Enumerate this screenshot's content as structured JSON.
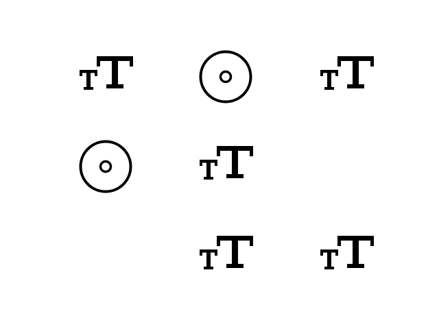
{
  "colors": {
    "background": "#ffffff",
    "icon": "#000000"
  },
  "grid": {
    "rows": 3,
    "cols": 3,
    "cells": [
      {
        "icon": "text-size-icon"
      },
      {
        "icon": "radio-button-icon"
      },
      {
        "icon": "text-size-icon"
      },
      {
        "icon": "radio-button-icon"
      },
      {
        "icon": "text-size-icon"
      },
      {
        "icon": ""
      },
      {
        "icon": ""
      },
      {
        "icon": "text-size-icon"
      },
      {
        "icon": "text-size-icon"
      }
    ]
  }
}
